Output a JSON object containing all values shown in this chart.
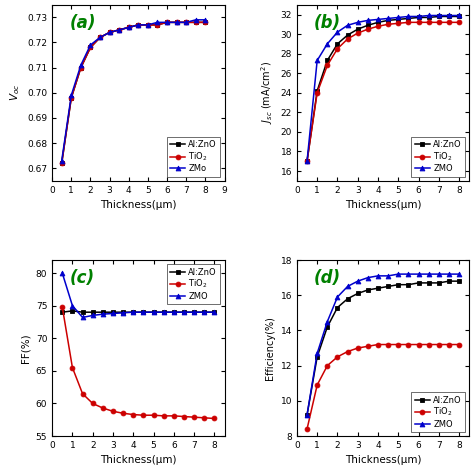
{
  "thickness": [
    0.5,
    1.0,
    1.5,
    2.0,
    2.5,
    3.0,
    3.5,
    4.0,
    4.5,
    5.0,
    5.5,
    6.0,
    6.5,
    7.0,
    7.5,
    8.0
  ],
  "voc_AlZnO": [
    0.672,
    0.698,
    0.71,
    0.718,
    0.722,
    0.724,
    0.725,
    0.726,
    0.727,
    0.727,
    0.727,
    0.728,
    0.728,
    0.728,
    0.728,
    0.728
  ],
  "voc_TiO2": [
    0.672,
    0.698,
    0.71,
    0.718,
    0.722,
    0.724,
    0.725,
    0.726,
    0.727,
    0.727,
    0.727,
    0.728,
    0.728,
    0.728,
    0.728,
    0.728
  ],
  "voc_ZMO": [
    0.673,
    0.699,
    0.711,
    0.719,
    0.722,
    0.724,
    0.725,
    0.726,
    0.727,
    0.727,
    0.728,
    0.728,
    0.728,
    0.728,
    0.729,
    0.729
  ],
  "jsc_AlZnO": [
    17.0,
    24.2,
    27.3,
    29.0,
    29.9,
    30.5,
    30.9,
    31.2,
    31.4,
    31.5,
    31.6,
    31.7,
    31.7,
    31.8,
    31.8,
    31.8
  ],
  "jsc_TiO2": [
    17.0,
    24.0,
    26.8,
    28.5,
    29.5,
    30.1,
    30.5,
    30.8,
    31.0,
    31.1,
    31.2,
    31.2,
    31.2,
    31.2,
    31.2,
    31.2
  ],
  "jsc_ZMO": [
    17.0,
    27.3,
    29.0,
    30.2,
    30.9,
    31.2,
    31.4,
    31.5,
    31.6,
    31.7,
    31.8,
    31.8,
    31.9,
    31.9,
    31.9,
    31.9
  ],
  "ff_AlZnO": [
    74.0,
    74.2,
    74.0,
    74.0,
    74.0,
    74.0,
    74.0,
    74.0,
    74.0,
    74.0,
    74.0,
    74.0,
    74.0,
    74.0,
    74.0,
    74.0
  ],
  "ff_TiO2": [
    74.8,
    65.5,
    61.5,
    60.0,
    59.3,
    58.8,
    58.5,
    58.3,
    58.2,
    58.2,
    58.1,
    58.1,
    58.0,
    57.9,
    57.8,
    57.7
  ],
  "ff_ZMO": [
    80.0,
    75.0,
    73.2,
    73.5,
    73.7,
    73.8,
    73.9,
    74.0,
    74.0,
    74.0,
    74.0,
    74.0,
    74.0,
    74.0,
    74.0,
    74.0
  ],
  "eff_AlZnO": [
    9.2,
    12.5,
    14.2,
    15.3,
    15.8,
    16.1,
    16.3,
    16.4,
    16.5,
    16.6,
    16.6,
    16.7,
    16.7,
    16.7,
    16.8,
    16.8
  ],
  "eff_TiO2": [
    8.4,
    10.9,
    12.0,
    12.5,
    12.8,
    13.0,
    13.1,
    13.2,
    13.2,
    13.2,
    13.2,
    13.2,
    13.2,
    13.2,
    13.2,
    13.2
  ],
  "eff_ZMO": [
    9.2,
    12.7,
    14.5,
    15.9,
    16.5,
    16.8,
    17.0,
    17.1,
    17.1,
    17.2,
    17.2,
    17.2,
    17.2,
    17.2,
    17.2,
    17.2
  ],
  "color_AlZnO": "#000000",
  "color_TiO2": "#cc0000",
  "color_ZMO": "#0000cc",
  "label_a": "(a)",
  "label_b": "(b)",
  "label_c": "(c)",
  "label_d": "(d)",
  "xlabel": "Thickness(μm)",
  "ylim_a": [
    0.665,
    0.735
  ],
  "ylim_b": [
    15,
    33
  ],
  "ylim_c": [
    55,
    82
  ],
  "ylim_d": [
    8,
    18
  ],
  "xlim_a": [
    0,
    9
  ],
  "xlim_bcd": [
    0,
    8.5
  ],
  "legend_AlZnO": "Al:ZnO",
  "legend_TiO2": "TiO$_2$",
  "legend_ZMo": "ZMo",
  "legend_ZMO": "ZMO",
  "bg_color": "#ffffff"
}
